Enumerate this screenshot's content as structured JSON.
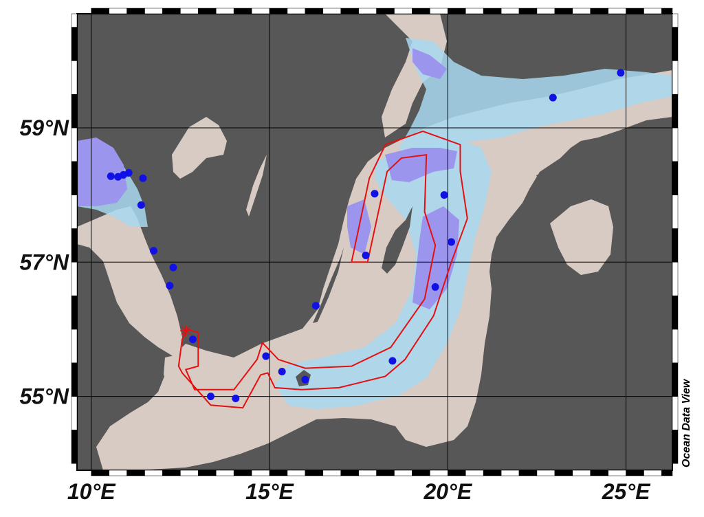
{
  "map": {
    "watermark": "Ocean Data View",
    "lat_labels": [
      {
        "text": "59°N",
        "lat": 59
      },
      {
        "text": "57°N",
        "lat": 57
      },
      {
        "text": "55°N",
        "lat": 55
      }
    ],
    "lon_labels": [
      {
        "text": "10°E",
        "lon": 10
      },
      {
        "text": "15°E",
        "lon": 15
      },
      {
        "text": "20°E",
        "lon": 20
      },
      {
        "text": "25°E",
        "lon": 25
      }
    ],
    "extent": {
      "lon_min": 9.6,
      "lon_max": 26.3,
      "lat_min": 53.9,
      "lat_max": 60.7
    },
    "colors": {
      "land": "#575757",
      "sea_shallow": "#d8cbc4",
      "sea_medium": "#a8d8f0",
      "sea_deep": "#9b95ee",
      "station": "#1111e6",
      "track": "#e60f0f",
      "grid": "#000000"
    },
    "stations": [
      {
        "lon": 10.55,
        "lat": 58.28
      },
      {
        "lon": 10.75,
        "lat": 58.27
      },
      {
        "lon": 10.9,
        "lat": 58.3
      },
      {
        "lon": 11.05,
        "lat": 58.33
      },
      {
        "lon": 11.45,
        "lat": 58.25
      },
      {
        "lon": 11.4,
        "lat": 57.85
      },
      {
        "lon": 11.75,
        "lat": 57.17
      },
      {
        "lon": 12.3,
        "lat": 56.92
      },
      {
        "lon": 12.2,
        "lat": 56.65
      },
      {
        "lon": 12.85,
        "lat": 55.85
      },
      {
        "lon": 13.35,
        "lat": 55.0
      },
      {
        "lon": 14.05,
        "lat": 54.97
      },
      {
        "lon": 14.9,
        "lat": 55.6
      },
      {
        "lon": 15.35,
        "lat": 55.37
      },
      {
        "lon": 16.0,
        "lat": 55.25
      },
      {
        "lon": 16.3,
        "lat": 56.35
      },
      {
        "lon": 18.45,
        "lat": 55.53
      },
      {
        "lon": 19.65,
        "lat": 56.63
      },
      {
        "lon": 20.1,
        "lat": 57.3
      },
      {
        "lon": 19.9,
        "lat": 58.0
      },
      {
        "lon": 17.95,
        "lat": 58.02
      },
      {
        "lon": 17.7,
        "lat": 57.1
      },
      {
        "lon": 22.95,
        "lat": 59.45
      },
      {
        "lon": 24.85,
        "lat": 59.82
      }
    ],
    "track_polygon": [
      [
        12.7,
        56.0
      ],
      [
        13.0,
        55.95
      ],
      [
        13.0,
        55.45
      ],
      [
        12.65,
        55.4
      ],
      [
        12.9,
        55.1
      ],
      [
        13.35,
        55.1
      ],
      [
        14.0,
        55.1
      ],
      [
        14.65,
        55.55
      ],
      [
        14.8,
        55.8
      ],
      [
        15.25,
        55.55
      ],
      [
        16.0,
        55.42
      ],
      [
        17.3,
        55.45
      ],
      [
        18.4,
        55.73
      ],
      [
        19.35,
        56.45
      ],
      [
        19.65,
        57.25
      ],
      [
        19.35,
        57.75
      ],
      [
        19.4,
        58.6
      ],
      [
        18.7,
        58.55
      ],
      [
        18.3,
        58.35
      ],
      [
        17.75,
        57.0
      ],
      [
        17.3,
        57.0
      ],
      [
        17.8,
        58.25
      ],
      [
        18.25,
        58.75
      ],
      [
        19.3,
        58.95
      ],
      [
        20.35,
        58.75
      ],
      [
        20.35,
        58.35
      ],
      [
        20.55,
        57.65
      ],
      [
        20.1,
        57.0
      ],
      [
        19.6,
        56.2
      ],
      [
        18.8,
        55.55
      ],
      [
        18.25,
        55.3
      ],
      [
        16.95,
        55.13
      ],
      [
        15.9,
        55.1
      ],
      [
        15.15,
        55.13
      ],
      [
        14.95,
        55.35
      ],
      [
        14.75,
        55.32
      ],
      [
        14.25,
        54.83
      ],
      [
        13.35,
        54.87
      ],
      [
        12.55,
        55.35
      ],
      [
        12.45,
        55.45
      ],
      [
        12.55,
        55.85
      ]
    ],
    "marker": {
      "lon": 12.65,
      "lat": 55.98
    }
  }
}
